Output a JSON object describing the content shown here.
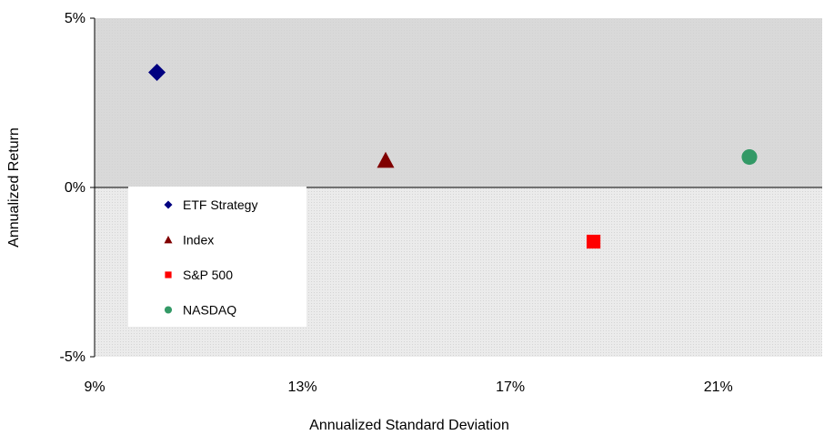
{
  "chart_data": {
    "type": "scatter",
    "title": "",
    "xlabel": "Annualized Standard Deviation",
    "ylabel": "Annualized Return",
    "xlim": [
      9,
      23
    ],
    "ylim": [
      -5,
      5
    ],
    "x_ticks": [
      {
        "value": 9,
        "label": "9%"
      },
      {
        "value": 13,
        "label": "13%"
      },
      {
        "value": 17,
        "label": "17%"
      },
      {
        "value": 21,
        "label": "21%"
      }
    ],
    "y_ticks": [
      {
        "value": 5,
        "label": "5%"
      },
      {
        "value": 0,
        "label": "0%"
      },
      {
        "value": -5,
        "label": "-5%"
      }
    ],
    "grid": false,
    "legend_position": "bottom-left",
    "series": [
      {
        "name": "ETF Strategy",
        "marker": "diamond",
        "color": "#000080",
        "x": [
          10.2
        ],
        "y": [
          3.4
        ]
      },
      {
        "name": "Index",
        "marker": "triangle",
        "color": "#800000",
        "x": [
          14.6
        ],
        "y": [
          0.8
        ]
      },
      {
        "name": "S&P 500",
        "marker": "square",
        "color": "#ff0000",
        "x": [
          18.6
        ],
        "y": [
          -1.6
        ]
      },
      {
        "name": "NASDAQ",
        "marker": "circle",
        "color": "#339966",
        "x": [
          21.6
        ],
        "y": [
          0.9
        ]
      }
    ],
    "colors": {
      "upper_band": "#d9d9d9",
      "lower_band": "#ebebeb",
      "legend_background": "#ffffff"
    }
  }
}
